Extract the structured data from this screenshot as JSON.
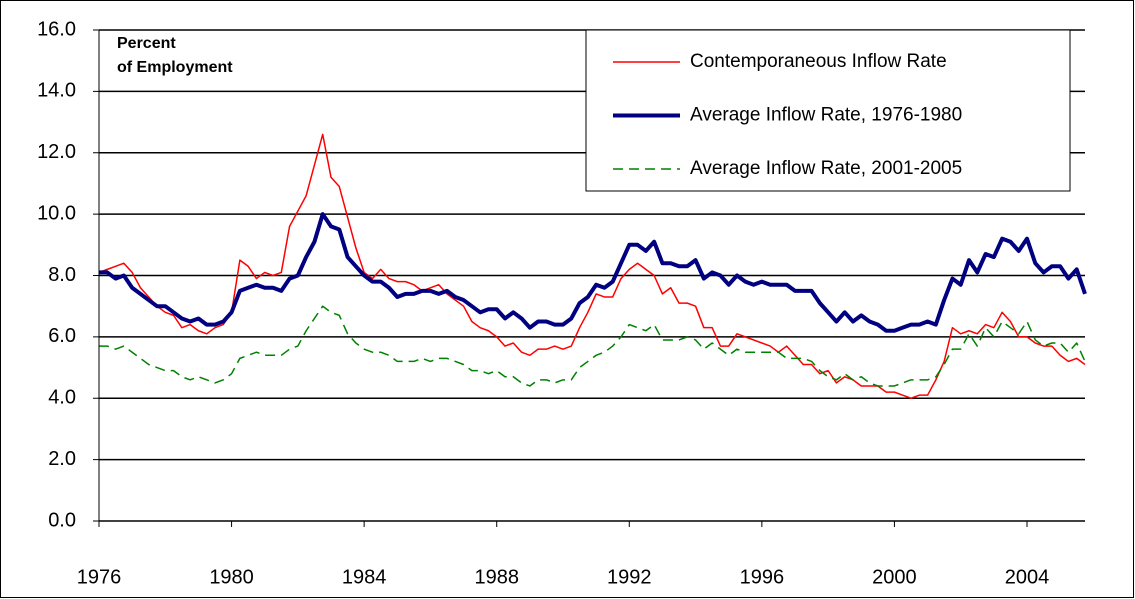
{
  "chart_data": {
    "type": "line",
    "ylabel": [
      "Percent",
      "of Employment"
    ],
    "xlim": [
      1976,
      2005.75
    ],
    "xticks": [
      1976,
      1980,
      1984,
      1988,
      1992,
      1996,
      2000,
      2004
    ],
    "ylim": [
      0,
      16
    ],
    "yticks": [
      {
        "value": 0,
        "label": "0.0"
      },
      {
        "value": 2,
        "label": "2.0"
      },
      {
        "value": 4,
        "label": "4.0"
      },
      {
        "value": 6,
        "label": "6.0"
      },
      {
        "value": 8,
        "label": "8.0"
      },
      {
        "value": 10,
        "label": "10.0"
      },
      {
        "value": 12,
        "label": "12.0"
      },
      {
        "value": 14,
        "label": "14.0"
      },
      {
        "value": 16,
        "label": "16.0"
      }
    ],
    "grid": true,
    "legend": "upper right",
    "x": [
      1976,
      1976.25,
      1976.5,
      1976.75,
      1977,
      1977.25,
      1977.5,
      1977.75,
      1978,
      1978.25,
      1978.5,
      1978.75,
      1979,
      1979.25,
      1979.5,
      1979.75,
      1980,
      1980.25,
      1980.5,
      1980.75,
      1981,
      1981.25,
      1981.5,
      1981.75,
      1982,
      1982.25,
      1982.5,
      1982.75,
      1983,
      1983.25,
      1983.5,
      1983.75,
      1984,
      1984.25,
      1984.5,
      1984.75,
      1985,
      1985.25,
      1985.5,
      1985.75,
      1986,
      1986.25,
      1986.5,
      1986.75,
      1987,
      1987.25,
      1987.5,
      1987.75,
      1988,
      1988.25,
      1988.5,
      1988.75,
      1989,
      1989.25,
      1989.5,
      1989.75,
      1990,
      1990.25,
      1990.5,
      1990.75,
      1991,
      1991.25,
      1991.5,
      1991.75,
      1992,
      1992.25,
      1992.5,
      1992.75,
      1993,
      1993.25,
      1993.5,
      1993.75,
      1994,
      1994.25,
      1994.5,
      1994.75,
      1995,
      1995.25,
      1995.5,
      1995.75,
      1996,
      1996.25,
      1996.5,
      1996.75,
      1997,
      1997.25,
      1997.5,
      1997.75,
      1998,
      1998.25,
      1998.5,
      1998.75,
      1999,
      1999.25,
      1999.5,
      1999.75,
      2000,
      2000.25,
      2000.5,
      2000.75,
      2001,
      2001.25,
      2001.5,
      2001.75,
      2002,
      2002.25,
      2002.5,
      2002.75,
      2003,
      2003.25,
      2003.5,
      2003.75,
      2004,
      2004.25,
      2004.5,
      2004.75,
      2005,
      2005.25,
      2005.5,
      2005.75
    ],
    "series": [
      {
        "name": "Contemporaneous Inflow Rate",
        "color": "#ff0000",
        "style": "thin",
        "values": [
          8.1,
          8.2,
          8.3,
          8.4,
          8.1,
          7.6,
          7.3,
          7.0,
          6.8,
          6.7,
          6.3,
          6.4,
          6.2,
          6.1,
          6.3,
          6.4,
          6.8,
          8.5,
          8.3,
          7.9,
          8.1,
          8.0,
          8.1,
          9.6,
          10.1,
          10.6,
          11.6,
          12.6,
          11.2,
          10.9,
          9.9,
          8.9,
          8.1,
          7.9,
          8.2,
          7.9,
          7.8,
          7.8,
          7.7,
          7.5,
          7.6,
          7.7,
          7.4,
          7.2,
          7.0,
          6.5,
          6.3,
          6.2,
          6.0,
          5.7,
          5.8,
          5.5,
          5.4,
          5.6,
          5.6,
          5.7,
          5.6,
          5.7,
          6.3,
          6.8,
          7.4,
          7.3,
          7.3,
          7.9,
          8.2,
          8.4,
          8.2,
          8.0,
          7.4,
          7.6,
          7.1,
          7.1,
          7.0,
          6.3,
          6.3,
          5.7,
          5.7,
          6.1,
          6.0,
          5.9,
          5.8,
          5.7,
          5.5,
          5.7,
          5.4,
          5.1,
          5.1,
          4.8,
          4.9,
          4.5,
          4.7,
          4.6,
          4.4,
          4.4,
          4.4,
          4.2,
          4.2,
          4.1,
          4.0,
          4.1,
          4.1,
          4.6,
          5.2,
          6.3,
          6.1,
          6.2,
          6.1,
          6.4,
          6.3,
          6.8,
          6.5,
          6.0,
          6.0,
          5.8,
          5.7,
          5.7,
          5.4,
          5.2,
          5.3,
          5.1
        ]
      },
      {
        "name": "Average Inflow Rate, 1976-1980",
        "color": "#000080",
        "style": "thick",
        "values": [
          8.1,
          8.1,
          7.9,
          8.0,
          7.6,
          7.4,
          7.2,
          7.0,
          7.0,
          6.8,
          6.6,
          6.5,
          6.6,
          6.4,
          6.4,
          6.5,
          6.8,
          7.5,
          7.6,
          7.7,
          7.6,
          7.6,
          7.5,
          7.9,
          8.0,
          8.6,
          9.1,
          10.0,
          9.6,
          9.5,
          8.6,
          8.3,
          8.0,
          7.8,
          7.8,
          7.6,
          7.3,
          7.4,
          7.4,
          7.5,
          7.5,
          7.4,
          7.5,
          7.3,
          7.2,
          7.0,
          6.8,
          6.9,
          6.9,
          6.6,
          6.8,
          6.6,
          6.3,
          6.5,
          6.5,
          6.4,
          6.4,
          6.6,
          7.1,
          7.3,
          7.7,
          7.6,
          7.8,
          8.4,
          9.0,
          9.0,
          8.8,
          9.1,
          8.4,
          8.4,
          8.3,
          8.3,
          8.5,
          7.9,
          8.1,
          8.0,
          7.7,
          8.0,
          7.8,
          7.7,
          7.8,
          7.7,
          7.7,
          7.7,
          7.5,
          7.5,
          7.5,
          7.1,
          6.8,
          6.5,
          6.8,
          6.5,
          6.7,
          6.5,
          6.4,
          6.2,
          6.2,
          6.3,
          6.4,
          6.4,
          6.5,
          6.4,
          7.2,
          7.9,
          7.7,
          8.5,
          8.1,
          8.7,
          8.6,
          9.2,
          9.1,
          8.8,
          9.2,
          8.4,
          8.1,
          8.3,
          8.3,
          7.9,
          8.2,
          7.4
        ]
      },
      {
        "name": "Average Inflow Rate, 2001-2005",
        "color": "#008000",
        "style": "dashed",
        "values": [
          5.7,
          5.7,
          5.6,
          5.7,
          5.5,
          5.3,
          5.1,
          5.0,
          4.9,
          4.9,
          4.7,
          4.6,
          4.7,
          4.6,
          4.5,
          4.6,
          4.8,
          5.3,
          5.4,
          5.5,
          5.4,
          5.4,
          5.4,
          5.6,
          5.7,
          6.2,
          6.6,
          7.0,
          6.8,
          6.7,
          6.1,
          5.8,
          5.6,
          5.5,
          5.5,
          5.4,
          5.2,
          5.2,
          5.2,
          5.3,
          5.2,
          5.3,
          5.3,
          5.2,
          5.1,
          4.9,
          4.9,
          4.8,
          4.9,
          4.7,
          4.7,
          4.5,
          4.4,
          4.6,
          4.6,
          4.5,
          4.6,
          4.6,
          5.0,
          5.2,
          5.4,
          5.5,
          5.7,
          6.0,
          6.4,
          6.3,
          6.2,
          6.4,
          5.9,
          5.9,
          5.9,
          6.0,
          5.9,
          5.6,
          5.8,
          5.6,
          5.4,
          5.6,
          5.5,
          5.5,
          5.5,
          5.5,
          5.5,
          5.3,
          5.3,
          5.3,
          5.2,
          4.9,
          4.7,
          4.6,
          4.8,
          4.6,
          4.7,
          4.5,
          4.4,
          4.4,
          4.4,
          4.5,
          4.6,
          4.6,
          4.6,
          4.7,
          5.1,
          5.6,
          5.6,
          6.1,
          5.7,
          6.3,
          6.0,
          6.5,
          6.3,
          6.1,
          6.5,
          5.9,
          5.7,
          5.8,
          5.8,
          5.5,
          5.8,
          5.2
        ]
      }
    ]
  }
}
